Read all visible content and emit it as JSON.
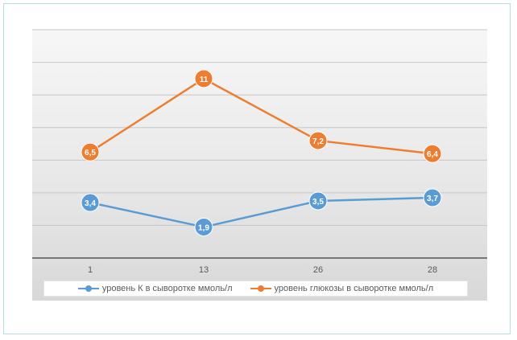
{
  "chart_data": {
    "type": "line",
    "categories": [
      "1",
      "13",
      "26",
      "28"
    ],
    "series": [
      {
        "name": "уровень К в сыворотке ммоль/л",
        "values": [
          3.4,
          1.9,
          3.5,
          3.7
        ],
        "labels": [
          "3,4",
          "1,9",
          "3,5",
          "3,7"
        ],
        "color": "#5b9bd5"
      },
      {
        "name": "уровень глюкозы в сыворотке ммоль/л",
        "values": [
          6.5,
          11,
          7.2,
          6.4
        ],
        "labels": [
          "6,5",
          "11",
          "7,2",
          "6,4"
        ],
        "color": "#ed7d31"
      }
    ],
    "ylim": [
      0,
      14
    ],
    "grid": true,
    "legend": "bottom",
    "title": "",
    "xlabel": "",
    "ylabel": ""
  }
}
